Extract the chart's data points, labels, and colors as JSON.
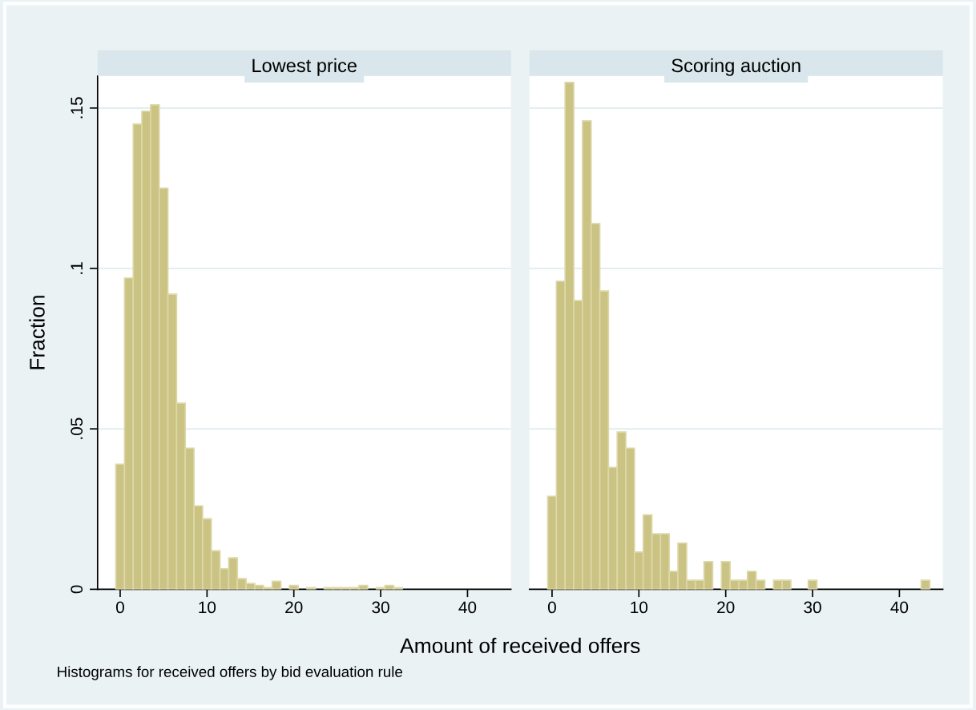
{
  "chart_data": [
    {
      "type": "histogram",
      "title": "Lowest price",
      "xlabel": "Amount of received offers",
      "ylabel": "Fraction",
      "annotations": [
        "Histograms for received offers by bid evaluation rule"
      ],
      "bins": [
        -0.5,
        0.5,
        1.5,
        2.5,
        3.5,
        4.5,
        5.5,
        6.5,
        7.5,
        8.5,
        9.5,
        10.5,
        11.5,
        12.5,
        13.5,
        14.5,
        15.5,
        16.5,
        17.5,
        18.5,
        19.5,
        20.5,
        21.5,
        22.5,
        23.5,
        24.5,
        25.5,
        26.5,
        27.5,
        28.5,
        29.5,
        30.5,
        31.5,
        32.5,
        33.5,
        34.5,
        35.5,
        36.5,
        37.5,
        38.5,
        39.5,
        40.5,
        41.5,
        42.5,
        43.5
      ],
      "values": [
        0.039,
        0.097,
        0.145,
        0.149,
        0.151,
        0.125,
        0.092,
        0.058,
        0.044,
        0.026,
        0.022,
        0.012,
        0.0064,
        0.0098,
        0.0033,
        0.0018,
        0.0012,
        0.0005,
        0.0025,
        0,
        0.0012,
        0,
        0.0005,
        0,
        0.0005,
        0.0005,
        0.0005,
        0.0005,
        0.0012,
        0,
        0.0005,
        0.0012,
        0.0005,
        0,
        0,
        0,
        0,
        0,
        0,
        0,
        0,
        0,
        0,
        0
      ],
      "color": "#cbc384",
      "xlim": [
        -2.6,
        45
      ],
      "ylim": [
        0,
        0.16
      ],
      "xticks": [
        0,
        10,
        20,
        30,
        40
      ],
      "yticks": [
        0,
        {
          "value": 0.05,
          "label": ".05"
        },
        {
          "value": 0.1,
          "label": ".1"
        },
        {
          "value": 0.15,
          "label": ".15"
        }
      ],
      "grid": "y"
    },
    {
      "type": "histogram",
      "title": "Scoring auction",
      "bins": [
        -0.5,
        0.5,
        1.5,
        2.5,
        3.5,
        4.5,
        5.5,
        6.5,
        7.5,
        8.5,
        9.5,
        10.5,
        11.5,
        12.5,
        13.5,
        14.5,
        15.5,
        16.5,
        17.5,
        18.5,
        19.5,
        20.5,
        21.5,
        22.5,
        23.5,
        24.5,
        25.5,
        26.5,
        27.5,
        28.5,
        29.5,
        30.5,
        31.5,
        32.5,
        33.5,
        34.5,
        35.5,
        36.5,
        37.5,
        38.5,
        39.5,
        40.5,
        41.5,
        42.5,
        43.5
      ],
      "values": [
        0.029,
        0.096,
        0.158,
        0.09,
        0.146,
        0.114,
        0.093,
        0.038,
        0.049,
        0.044,
        0.0116,
        0.0232,
        0.0173,
        0.0173,
        0.0056,
        0.0144,
        0.0028,
        0.0028,
        0.0086,
        0,
        0.0086,
        0.0028,
        0.0028,
        0.0056,
        0.0028,
        0,
        0.0028,
        0.0028,
        0,
        0,
        0.0028,
        0,
        0,
        0,
        0,
        0,
        0,
        0,
        0,
        0,
        0,
        0,
        0,
        0.0028
      ],
      "color": "#cbc384",
      "xlim": [
        -2.6,
        45
      ],
      "ylim": [
        0,
        0.16
      ],
      "xticks": [
        0,
        10,
        20,
        30,
        40
      ],
      "yticks": [
        0,
        0.05,
        0.1,
        0.15
      ],
      "grid": "y",
      "tick_labels": "x"
    }
  ]
}
